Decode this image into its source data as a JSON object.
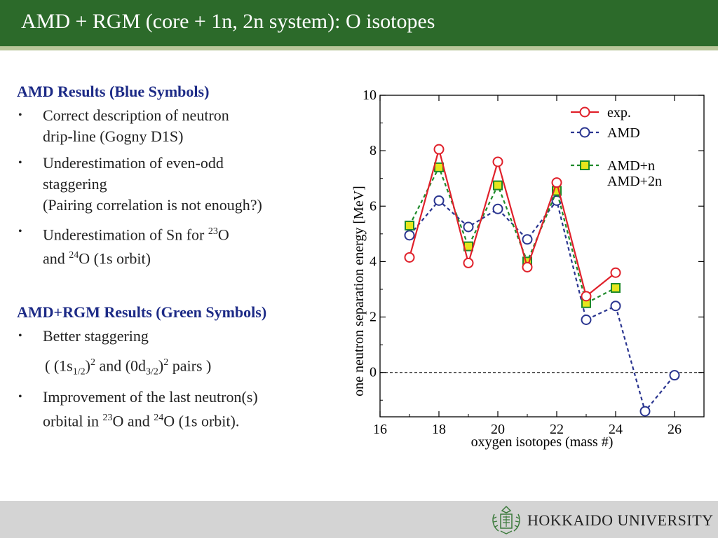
{
  "header": {
    "title": "AMD + RGM (core + 1n, 2n system): O isotopes"
  },
  "section1": {
    "heading": "AMD Results (Blue Symbols)",
    "b1_l1": "Correct description of neutron",
    "b1_l2": "drip-line (Gogny D1S)",
    "b2_l1": "Underestimation of even-odd",
    "b2_l2": "staggering",
    "b2_l3": "(Pairing correlation is not enough?)",
    "b3_l1_pre": "Underestimation of  Sn for ",
    "b3_l1_sup": "23",
    "b3_l1_post": "O",
    "b3_l2_pre": "and ",
    "b3_l2_sup": "24",
    "b3_l2_post": "O (1s orbit)"
  },
  "section2": {
    "heading": "AMD+RGM Results (Green Symbols)",
    "b1": "Better staggering",
    "pairs_open": "( (1s",
    "pairs_sub1": "1/2",
    "pairs_mid1": ")",
    "pairs_sup1": "2",
    "pairs_mid2": " and (0d",
    "pairs_sub2": "3/2",
    "pairs_mid3": ")",
    "pairs_sup2": "2",
    "pairs_close": " pairs )",
    "b2_l1": "Improvement of the last neutron(s)",
    "b2_l2_pre": "orbital in ",
    "b2_l2_sup1": "23",
    "b2_l2_mid": "O and ",
    "b2_l2_sup2": "24",
    "b2_l2_post": "O (1s orbit)."
  },
  "footer": {
    "university": "HOKKAIDO UNIVERSITY"
  },
  "chart_data": {
    "type": "line",
    "xlabel": "oxygen isotopes (mass #)",
    "ylabel": "one neutron separation energy [MeV]",
    "xlim": [
      16,
      27
    ],
    "ylim": [
      -1.6,
      10
    ],
    "xticks": [
      16,
      18,
      20,
      22,
      24,
      26
    ],
    "yticks": [
      0,
      2,
      4,
      6,
      8,
      10
    ],
    "grid": false,
    "legend_position": "top-right",
    "reference_line": 0,
    "series": [
      {
        "name": "exp.",
        "color": "#e0202a",
        "marker": "circle",
        "line": "solid",
        "x": [
          17,
          18,
          19,
          20,
          21,
          22,
          23,
          24
        ],
        "y": [
          4.15,
          8.05,
          3.95,
          7.6,
          3.8,
          6.85,
          2.75,
          3.6
        ]
      },
      {
        "name": "AMD",
        "color": "#2a3590",
        "marker": "circle",
        "line": "dashed",
        "x": [
          17,
          18,
          19,
          20,
          21,
          22,
          23,
          24,
          25,
          26
        ],
        "y": [
          4.95,
          6.2,
          5.25,
          5.9,
          4.8,
          6.2,
          1.9,
          2.4,
          -1.4,
          -0.1
        ]
      },
      {
        "name": "AMD+n\nAMD+2n",
        "color": "#1e8a2a",
        "fill": "#e6e61c",
        "marker": "square",
        "line": "dashed",
        "x": [
          17,
          18,
          19,
          20,
          21,
          22,
          23,
          24
        ],
        "y": [
          5.3,
          7.4,
          4.55,
          6.75,
          4.0,
          6.55,
          2.5,
          3.05
        ]
      }
    ]
  }
}
